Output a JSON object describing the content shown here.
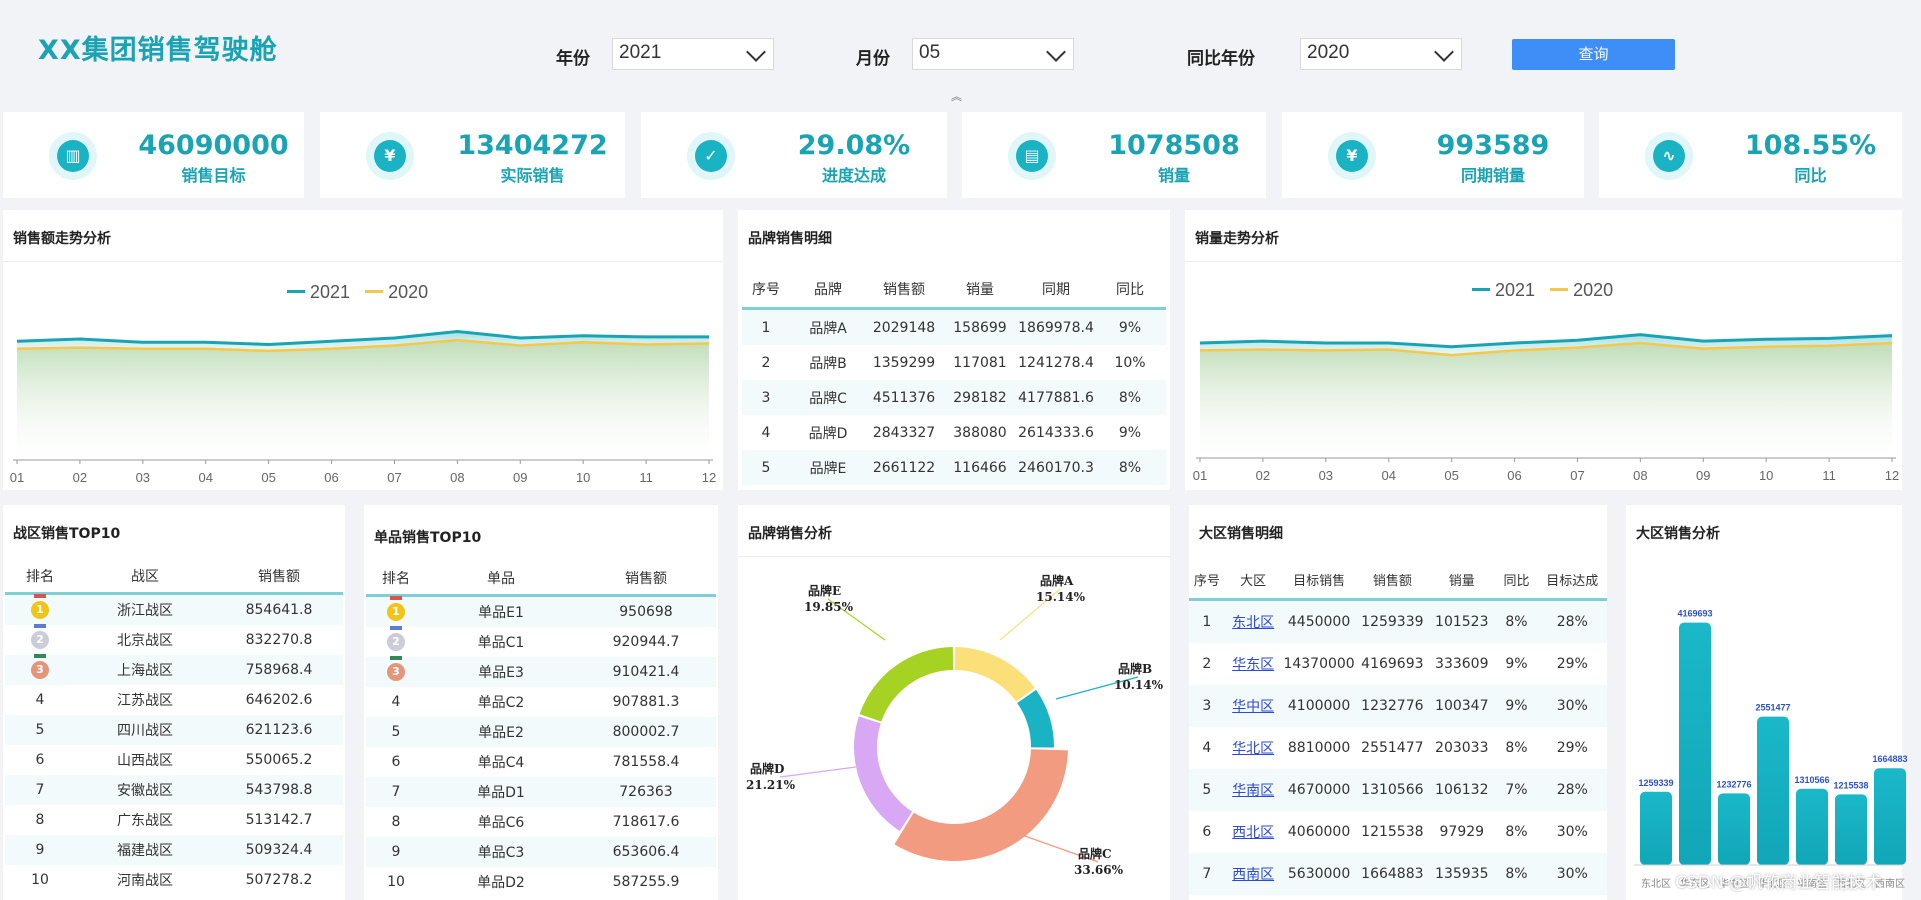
{
  "header": {
    "title": "XX集团销售驾驶舱",
    "filters": [
      {
        "label": "年份",
        "value": "2021"
      },
      {
        "label": "月份",
        "value": "05"
      },
      {
        "label": "同比年份",
        "value": "2020"
      }
    ],
    "query_button": "查询",
    "collapse_glyph": "︽"
  },
  "kpis": [
    {
      "value": "46090000",
      "label": "销售目标",
      "icon": "bar-chart-icon",
      "glyph": "▥"
    },
    {
      "value": "13404272",
      "label": "实际销售",
      "icon": "yen-icon",
      "glyph": "¥"
    },
    {
      "value": "29.08%",
      "label": "进度达成",
      "icon": "clipboard-check-icon",
      "glyph": "✓"
    },
    {
      "value": "1078508",
      "label": "销量",
      "icon": "document-search-icon",
      "glyph": "▤"
    },
    {
      "value": "993589",
      "label": "同期销量",
      "icon": "yen-shield-icon",
      "glyph": "¥"
    },
    {
      "value": "108.55%",
      "label": "同比",
      "icon": "pulse-icon",
      "glyph": "∿"
    }
  ],
  "sales_trend": {
    "title": "销售额走势分析",
    "legend": [
      "2021",
      "2020"
    ],
    "colors": [
      "#1aa3b3",
      "#f5c84b"
    ],
    "chart_data": {
      "type": "area",
      "categories": [
        "01",
        "02",
        "03",
        "04",
        "05",
        "06",
        "07",
        "08",
        "09",
        "10",
        "11",
        "12"
      ],
      "series": [
        {
          "name": "2021",
          "values": [
            110,
            112,
            109,
            109,
            107,
            110,
            113,
            119,
            113,
            115,
            114,
            114
          ]
        },
        {
          "name": "2020",
          "values": [
            103,
            104,
            103,
            103,
            101,
            103,
            106,
            111,
            106,
            109,
            107,
            108
          ]
        }
      ],
      "ylim": [
        0,
        150
      ]
    }
  },
  "volume_trend": {
    "title": "销量走势分析",
    "legend": [
      "2021",
      "2020"
    ],
    "colors": [
      "#1aa3b3",
      "#f5c84b"
    ],
    "chart_data": {
      "type": "area",
      "categories": [
        "01",
        "02",
        "03",
        "04",
        "05",
        "06",
        "07",
        "08",
        "09",
        "10",
        "11",
        "12"
      ],
      "series": [
        {
          "name": "2021",
          "values": [
            124,
            126,
            124,
            124,
            120,
            124,
            127,
            133,
            126,
            128,
            129,
            132
          ]
        },
        {
          "name": "2020",
          "values": [
            116,
            117,
            116,
            117,
            111,
            116,
            119,
            124,
            118,
            120,
            121,
            124
          ]
        }
      ],
      "ylim": [
        0,
        165
      ]
    }
  },
  "brand_detail": {
    "title": "品牌销售明细",
    "headers": [
      "序号",
      "品牌",
      "销售额",
      "销量",
      "同期",
      "同比"
    ],
    "rows": [
      [
        "1",
        "品牌A",
        "2029148",
        "158699",
        "1869978.4",
        "9%"
      ],
      [
        "2",
        "品牌B",
        "1359299",
        "117081",
        "1241278.4",
        "10%"
      ],
      [
        "3",
        "品牌C",
        "4511376",
        "298182",
        "4177881.6",
        "8%"
      ],
      [
        "4",
        "品牌D",
        "2843327",
        "388080",
        "2614333.6",
        "9%"
      ],
      [
        "5",
        "品牌E",
        "2661122",
        "116466",
        "2460170.3",
        "8%"
      ]
    ]
  },
  "zone_top10": {
    "title": "战区销售TOP10",
    "headers": [
      "排名",
      "战区",
      "销售额"
    ],
    "rows": [
      [
        "1",
        "浙江战区",
        "854641.8"
      ],
      [
        "2",
        "北京战区",
        "832270.8"
      ],
      [
        "3",
        "上海战区",
        "758968.4"
      ],
      [
        "4",
        "江苏战区",
        "646202.6"
      ],
      [
        "5",
        "四川战区",
        "621123.6"
      ],
      [
        "6",
        "山西战区",
        "550065.2"
      ],
      [
        "7",
        "安徽战区",
        "543798.8"
      ],
      [
        "8",
        "广东战区",
        "513142.7"
      ],
      [
        "9",
        "福建战区",
        "509324.4"
      ],
      [
        "10",
        "河南战区",
        "507278.2"
      ]
    ]
  },
  "product_top10": {
    "title": "单品销售TOP10",
    "headers": [
      "排名",
      "单品",
      "销售额"
    ],
    "rows": [
      [
        "1",
        "单品E1",
        "950698"
      ],
      [
        "2",
        "单品C1",
        "920944.7"
      ],
      [
        "3",
        "单品E3",
        "910421.4"
      ],
      [
        "4",
        "单品C2",
        "907881.3"
      ],
      [
        "5",
        "单品E2",
        "800002.7"
      ],
      [
        "6",
        "单品C4",
        "781558.4"
      ],
      [
        "7",
        "单品D1",
        "726363"
      ],
      [
        "8",
        "单品C6",
        "718617.6"
      ],
      [
        "9",
        "单品C3",
        "653606.4"
      ],
      [
        "10",
        "单品D2",
        "587255.9"
      ]
    ]
  },
  "brand_pie": {
    "title": "品牌销售分析",
    "chart_data": {
      "type": "pie",
      "slices": [
        {
          "name": "品牌A",
          "label": "15.14%",
          "value": 15.14,
          "color": "#fbe07a"
        },
        {
          "name": "品牌B",
          "label": "10.14%",
          "value": 10.14,
          "color": "#1ab3c4"
        },
        {
          "name": "品牌C",
          "label": "33.66%",
          "value": 33.66,
          "color": "#f39b80"
        },
        {
          "name": "品牌D",
          "label": "21.21%",
          "value": 21.21,
          "color": "#d9a8f5"
        },
        {
          "name": "品牌E",
          "label": "19.85%",
          "value": 19.85,
          "color": "#a6d323"
        }
      ]
    }
  },
  "region_detail": {
    "title": "大区销售明细",
    "headers": [
      "序号",
      "大区",
      "目标销售",
      "销售额",
      "销量",
      "同比",
      "目标达成"
    ],
    "rows": [
      [
        "1",
        "东北区",
        "4450000",
        "1259339",
        "101523",
        "8%",
        "28%"
      ],
      [
        "2",
        "华东区",
        "14370000",
        "4169693",
        "333609",
        "9%",
        "29%"
      ],
      [
        "3",
        "华中区",
        "4100000",
        "1232776",
        "100347",
        "9%",
        "30%"
      ],
      [
        "4",
        "华北区",
        "8810000",
        "2551477",
        "203033",
        "8%",
        "29%"
      ],
      [
        "5",
        "华南区",
        "4670000",
        "1310566",
        "106132",
        "7%",
        "28%"
      ],
      [
        "6",
        "西北区",
        "4060000",
        "1215538",
        "97929",
        "8%",
        "30%"
      ],
      [
        "7",
        "西南区",
        "5630000",
        "1664883",
        "135935",
        "8%",
        "30%"
      ]
    ]
  },
  "region_bar": {
    "title": "大区销售分析",
    "chart_data": {
      "type": "bar",
      "categories": [
        "东北区",
        "华东区",
        "华中区",
        "华北区",
        "华南区",
        "西北区",
        "西南区"
      ],
      "values": [
        1259339,
        4169693,
        1232776,
        2551477,
        1310566,
        1215538,
        1664883
      ],
      "ylim": [
        0,
        4300000
      ]
    }
  },
  "watermark": "CSDN @帆软商业智能技术"
}
